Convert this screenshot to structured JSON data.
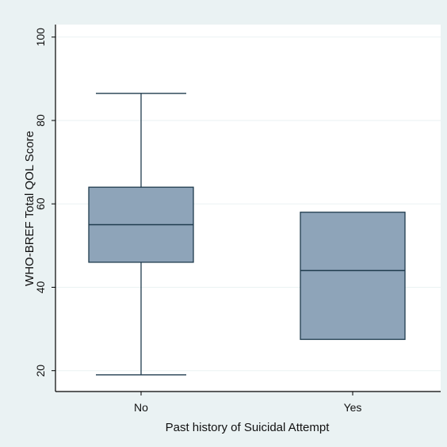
{
  "chart_data": {
    "type": "box",
    "xlabel": "Past history of Suicidal Attempt",
    "ylabel": "WHO-BREF Total QOL Score",
    "ylim": [
      15,
      103
    ],
    "yticks": [
      20,
      40,
      60,
      80,
      100
    ],
    "grid": true,
    "categories": [
      "No",
      "Yes"
    ],
    "boxes": [
      {
        "category": "No",
        "whisker_low": 19,
        "q1": 46,
        "median": 55,
        "q3": 64,
        "whisker_high": 86.5
      },
      {
        "category": "Yes",
        "whisker_low": 27.5,
        "q1": 27.5,
        "median": 44,
        "q3": 58,
        "whisker_high": 58
      }
    ],
    "colors": {
      "outer_background": "#eaf2f3",
      "plot_background": "#ffffff",
      "box_fill": "#8ea4b9",
      "box_stroke": "#1f3b4d",
      "gridline": "#eaf2f3",
      "axis": "#000000"
    }
  }
}
